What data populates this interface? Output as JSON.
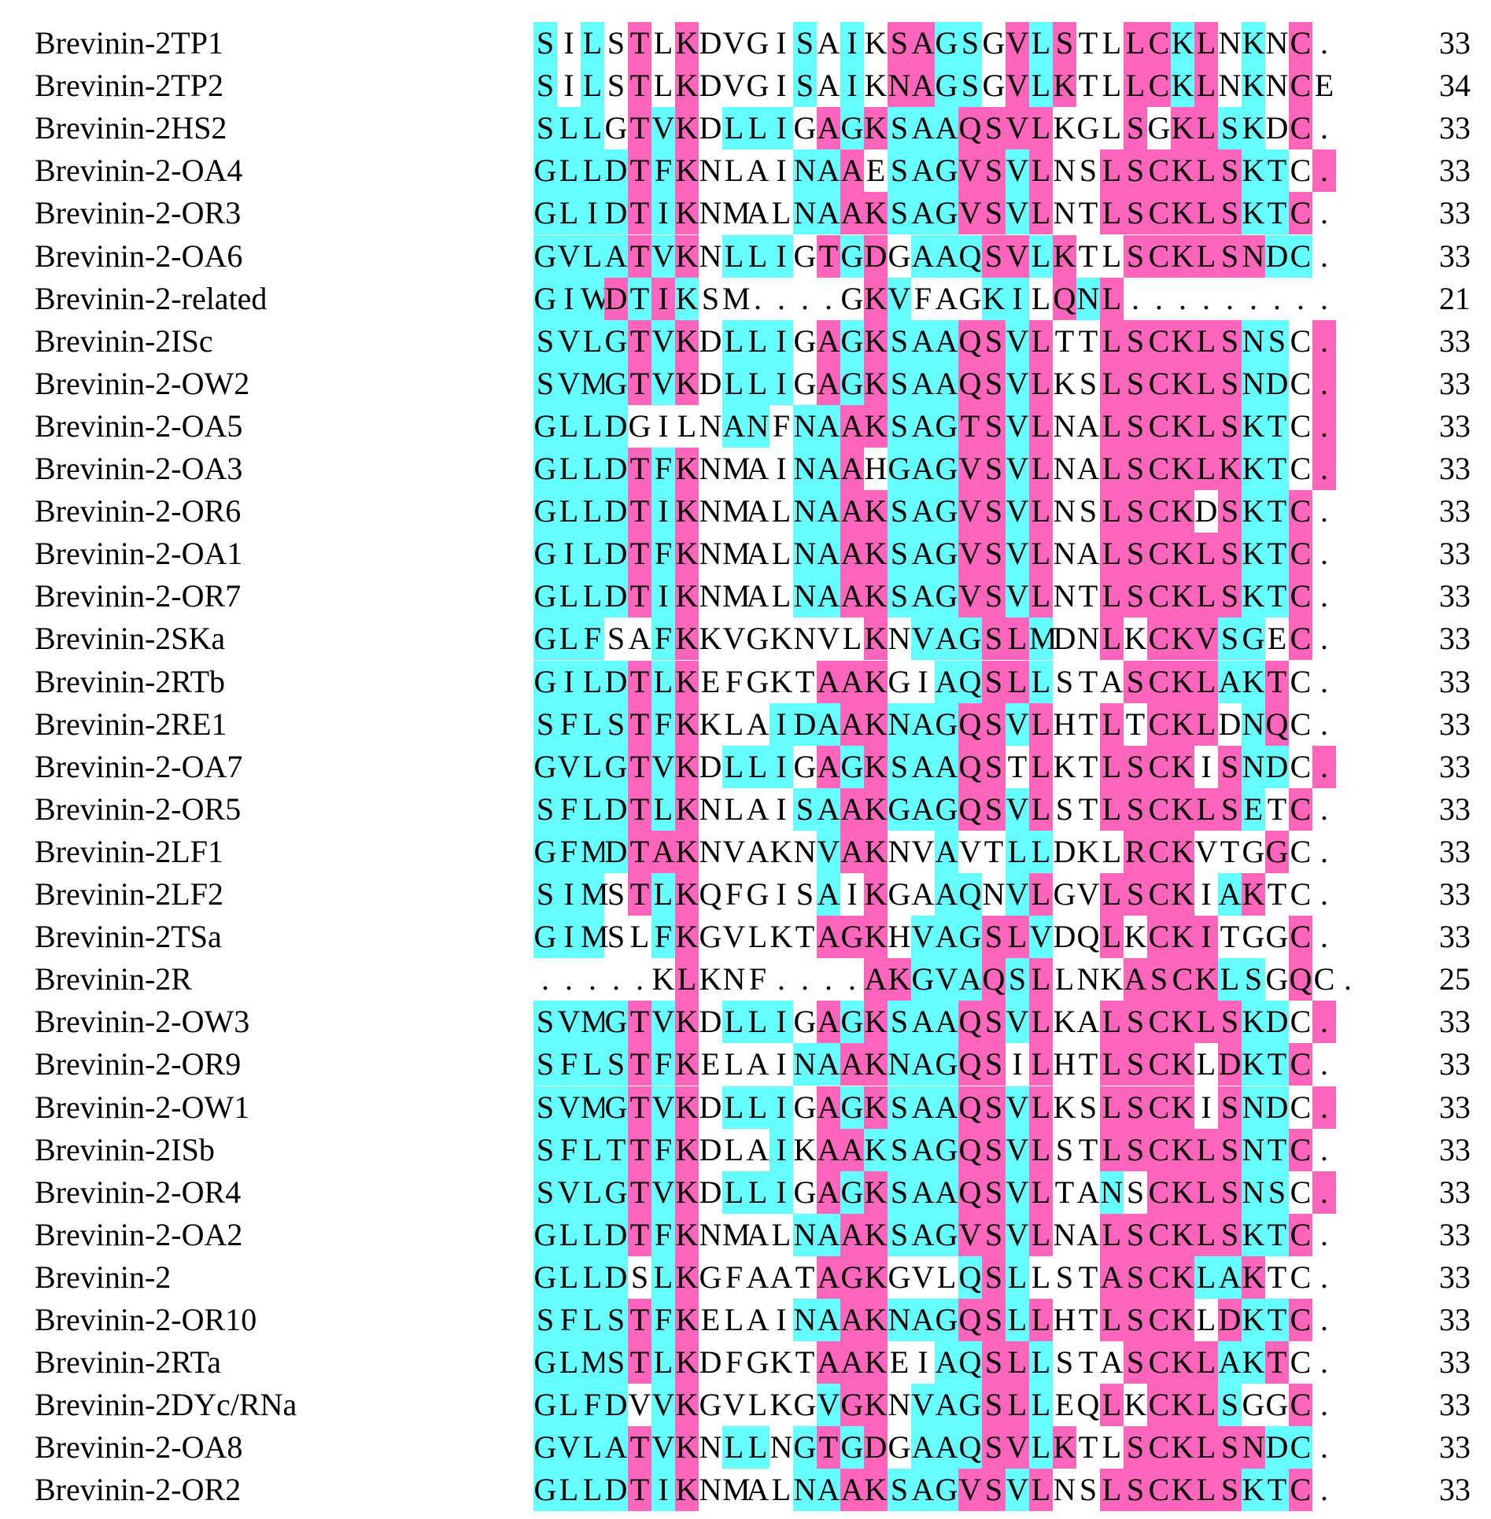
{
  "colors": {
    "identical": "#ff66bb",
    "similar": "#66ffff",
    "none": "#ffffff"
  },
  "highlight_rule": "Letters = residues (with '.' gaps). 'p' marks a pink-highlighted column (fully conserved), 'c' marks a cyan-highlighted column (similar), '-' no highlight.",
  "alignment": {
    "rows": [
      {
        "name": "Brevinin-2TP1",
        "sequence": "SILSTLKDVGISAIKSAGSGVLSTLLCKLNKNC.",
        "shading": "c-c-p-p----c-c-ppcc-pcp--ppcp-c-p-",
        "length": "33"
      },
      {
        "name": "Brevinin-2TP2",
        "sequence": "SILSTLKDVGISAIKNAGSGVLKTLLCKLNKNCE",
        "shading": "c-c-p-p----c-c-ppcc-pcp--ppcp-c-p-",
        "length": "34"
      },
      {
        "name": "Brevinin-2HS2",
        "sequence": "SLLGTVKDLLIGAGKSAAQSVLKGLSGKLSKDC.",
        "shading": "ccc-pcp-ccc-pcpcccpppp---p-ppcc-p-",
        "length": "33"
      },
      {
        "name": "Brevinin-2-OA4",
        "sequence": "GLLDTFKNLAINAAESAGVSVLNSLSCKLSKTC.",
        "shading": "ccccpcp----ccp-cccppcp--ppppppcc-p-",
        "length": "33"
      },
      {
        "name": "Brevinin-2-OR3",
        "sequence": "GLIDTIKNMALNAAKSAGVSVLNTLSCKLSKTC.",
        "shading": "ccccpcp----ccppcccppcp--ppppppccp-",
        "length": "33"
      },
      {
        "name": "Brevinin-2-OA6",
        "sequence": "GVLATVKNLLIGTGDGAAQSVLKTLSCKLSNDC.",
        "shading": "ccccpcp-ccc-pcp-cccppcp--ppppppcc-p-",
        "length": "33"
      },
      {
        "name": "Brevinin-2-related",
        "sequence": "GIWDTIKSM....GKVFAGKILQNL.........",
        "shading": "cccpcpc-------pc---cc-pcp---------p-",
        "length": "21"
      },
      {
        "name": "Brevinin-2ISc",
        "sequence": "SVLGTVKDLLIGAGKSAAQSVLTTLSCKLSNSC.",
        "shading": "ccccpcp-ccc-pcpcccppcp--ppppppcc-p-",
        "length": "33"
      },
      {
        "name": "Brevinin-2-OW2",
        "sequence": "SVMGTVKDLLIGAGKSAAQSVLKSLSCKLSNDC.",
        "shading": "ccccpcp-ccc-pcpcccppcp--ppppppcc-p-",
        "length": "33"
      },
      {
        "name": "Brevinin-2-OA5",
        "sequence": "GLLDGILNANFNAAKSAGTSVLNALSCKLSKTC.",
        "shading": "cccc----cc-ccppcccppcp--ppppppcc-p-",
        "length": "33"
      },
      {
        "name": "Brevinin-2-OA3",
        "sequence": "GLLDTFKNMAINAAHGAGVSVLNALSCKLKKTC.",
        "shading": "ccccpcp----ccp-cccppcp--ppppppcc-p-",
        "length": "33"
      },
      {
        "name": "Brevinin-2-OR6",
        "sequence": "GLLDTIKNMALNAAKSAGVSVLNSLSCKDSKTC.",
        "shading": "ccccpcp----ccppcccppcp--pppp-pccp-",
        "length": "33"
      },
      {
        "name": "Brevinin-2-OA1",
        "sequence": "GILDTFKNMALNAAKSAGVSVLNALSCKLSKTC.",
        "shading": "ccccpcp----ccppcccppcp--ppppppccp-",
        "length": "33"
      },
      {
        "name": "Brevinin-2-OR7",
        "sequence": "GLLDTIKNMALNAAKSAGVSVLNTLSCKLSKTC.",
        "shading": "ccccpcp----ccppcccppcp--ppppppccp-",
        "length": "33"
      },
      {
        "name": "Brevinin-2SKa",
        "sequence": "GLFSAFKKVGKNVLKNVAGSLMDNLKCKVSGEC.",
        "shading": "ccc--cp-------p-cccppc--p-pppcc-p-",
        "length": "33"
      },
      {
        "name": "Brevinin-2RTb",
        "sequence": "GILDTLKEFGKTAAKGIAQSLLSTASCKLAKTC.",
        "shading": "ccccpcp-----ppp--ccppc---ppppccp-",
        "length": "33"
      },
      {
        "name": "Brevinin-2RE1",
        "sequence": "SFLSTFKKLAIDAAKNAGQSVLHTLTCKLDNQC.",
        "shading": "ccccpcp---cccppcccppcp--p-ppp-cp-",
        "length": "33"
      },
      {
        "name": "Brevinin-2-OA7",
        "sequence": "GVLGTVKDLLIGAGKSAAQSTLKTLSCKISNDC.",
        "shading": "ccccpcp-ccc-pcpcccpp-p--pppp-pcc-p-",
        "length": "33"
      },
      {
        "name": "Brevinin-2-OR5",
        "sequence": "SFLDTLKNLAISAAKGAGQSVLSTLSCKLSETC.",
        "shading": "ccccpcp----ccppcccppcp--ppppppc-p-",
        "length": "33"
      },
      {
        "name": "Brevinin-2LF1",
        "sequence": "GFMDTAKNVAKNVAKNVAVTLLDKLRCKVTGGC.",
        "shading": "ccccppp-----cpp--c--cc---ppp---p-",
        "length": "33"
      },
      {
        "name": "Brevinin-2LF2",
        "sequence": "SIMSTLKQFGISAIKGAAQNVLGVLSCKIAKTC.",
        "shading": "ccc-pcp-----c-p--cc-cp--pppp-cp-",
        "length": "33"
      },
      {
        "name": "Brevinin-2TSa",
        "sequence": "GIMSLFKGVLKTAGKHVAGSLVDQLKCKITGGC.",
        "shading": "ccc--cp-----ppp-cccppc--p-ppp---p-",
        "length": "33"
      },
      {
        "name": "Brevinin-2R",
        "sequence": ".....KLKNF....AKGVAQSLLNKASCKLSGQC.",
        "shading": "------p-------ppcccpcp---ppppcc-p-",
        "length": "25"
      },
      {
        "name": "Brevinin-2-OW3",
        "sequence": "SVMGTVKDLLIGAGKSAAQSVLKALSCKLSKDC.",
        "shading": "ccccpcp-ccc-pcpcccppcp--ppppppcc-p-",
        "length": "33"
      },
      {
        "name": "Brevinin-2-OR9",
        "sequence": "SFLSTFKELAINAAKNAGQSILHTLSCKLDKTC.",
        "shading": "ccccpcp----ccppcccpp-p--pppp-pccp-",
        "length": "33"
      },
      {
        "name": "Brevinin-2-OW1",
        "sequence": "SVMGTVKDLLIGAGKSAAQSVLKSLSCKISNDC.",
        "shading": "ccccpcp-ccc-pcpcccppcp--pppp-pcc-p-",
        "length": "33"
      },
      {
        "name": "Brevinin-2ISb",
        "sequence": "SFLTTFKDLAIKAAKSAGQSVLSTLSCKLSNTC.",
        "shading": "ccccpcp---c-ppccccppcp--ppppppccp-",
        "length": "33"
      },
      {
        "name": "Brevinin-2-OR4",
        "sequence": "SVLGTVKDLLIGAGKSAAQSVLTANSCKLSNSC.",
        "shading": "ccccpcp-ccc-pcpcccppcp--c-ppppcc-p-",
        "length": "33"
      },
      {
        "name": "Brevinin-2-OA2",
        "sequence": "GLLDTFKNMALNAAKSAGVSVLNALSCKLSKTC.",
        "shading": "ccccpcp----ccppcccppcp--ppppppccp-",
        "length": "33"
      },
      {
        "name": "Brevinin-2",
        "sequence": "GLLDSLKGFAATAGKGVLQSLLSTASCKLAKTC.",
        "shading": "cccc-cp-----ppp---cpc---ppppccp-",
        "length": "33"
      },
      {
        "name": "Brevinin-2-OR10",
        "sequence": "SFLSTFKELAINAAKNAGQSLLHTLSCKLDKTC.",
        "shading": "ccccpcp----ccppcccppcp--pppp-pccp-",
        "length": "33"
      },
      {
        "name": "Brevinin-2RTa",
        "sequence": "GLMSTLKDFGKTAAKEIAQSLLSTASCKLAKTC.",
        "shading": "ccccpcp-----ppp--ccppc---ppppccp-",
        "length": "33"
      },
      {
        "name": "Brevinin-2DYc/RNa",
        "sequence": "GLFDVVKGVLKGVGKNVAGSLLEQLKCKLSGGC.",
        "shading": "cccc-cp-----cpp-cccppc--p-pppc--p-",
        "length": "33"
      },
      {
        "name": "Brevinin-2-OA8",
        "sequence": "GVLATVKNLLNGTGDGAAQSVLKTLSCKLSNDC.",
        "shading": "ccccpcp-cc-cpcp-cccppcp--ppppppcc-p-",
        "length": "33"
      },
      {
        "name": "Brevinin-2-OR2",
        "sequence": "GLLDTIKNMALNAAKSAGVSVLNSLSCKLSKTC.",
        "shading": "ccccpcp----ccppcccppcp--ppppppccp-",
        "length": "33"
      }
    ]
  }
}
